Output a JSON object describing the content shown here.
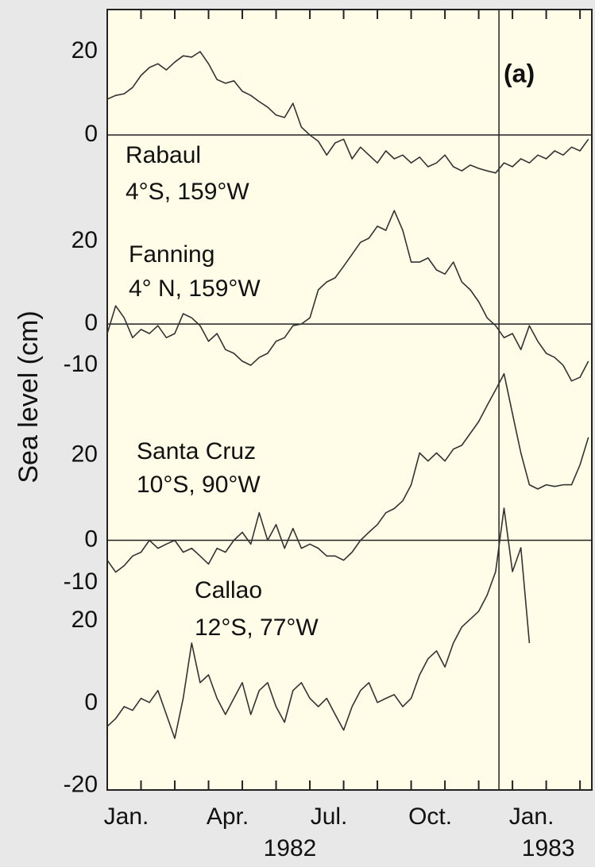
{
  "axes": {
    "ylabel": "Sea level (cm)",
    "annotation": "(a)",
    "xlim": [
      0,
      14.35
    ],
    "xticks": [
      {
        "value": 0,
        "label": "Jan."
      },
      1,
      2,
      {
        "value": 3,
        "label": "Apr."
      },
      4,
      5,
      {
        "value": 6,
        "label": "Jul."
      },
      7,
      8,
      {
        "value": 9,
        "label": "Oct."
      },
      10,
      11,
      {
        "value": 12,
        "label": "Jan."
      },
      13,
      14
    ],
    "year_labels": [
      {
        "value": 5.41,
        "label": "1982"
      },
      {
        "value": 13.06,
        "label": "1983"
      }
    ],
    "vline": 11.6
  },
  "chart_data": [
    {
      "type": "line",
      "title": "Rabaul",
      "subtitle": "4°S, 159°W",
      "color": "#333333",
      "zero_line": true,
      "ylim": [
        -157.1,
        30.1
      ],
      "yticks": [
        0,
        20
      ],
      "x": [
        0,
        0.25,
        0.5,
        0.75,
        1,
        1.25,
        1.5,
        1.75,
        2,
        2.25,
        2.5,
        2.75,
        3,
        3.25,
        3.5,
        3.75,
        4,
        4.25,
        4.5,
        4.75,
        5,
        5.25,
        5.5,
        5.75,
        6,
        6.25,
        6.5,
        6.75,
        7,
        7.25,
        7.5,
        7.75,
        8,
        8.25,
        8.5,
        8.75,
        9,
        9.25,
        9.5,
        9.75,
        10,
        10.25,
        10.5,
        10.75,
        11,
        11.25,
        11.5,
        11.75,
        12,
        12.25,
        12.5,
        12.75,
        13,
        13.25,
        13.5,
        13.75,
        14,
        14.25
      ],
      "values": [
        8.6,
        9.5,
        9.9,
        11.4,
        14.3,
        16.2,
        17.1,
        15.6,
        17.5,
        19,
        18.7,
        20,
        17.1,
        13.3,
        12.4,
        13,
        10.5,
        9.5,
        8,
        6.7,
        4.8,
        4.2,
        7.6,
        1.9,
        0,
        -1.5,
        -4.8,
        -1.9,
        -1,
        -5.7,
        -2.9,
        -4.8,
        -6.7,
        -3.8,
        -5.7,
        -4.8,
        -6.7,
        -5.3,
        -7.6,
        -6.7,
        -4.8,
        -7.6,
        -8.6,
        -7.2,
        -8,
        -8.6,
        -9.1,
        -6.7,
        -7.6,
        -5.7,
        -6.7,
        -4.8,
        -5.7,
        -3.8,
        -4.8,
        -2.9,
        -3.8,
        -1
      ]
    },
    {
      "type": "line",
      "title": "Fanning",
      "subtitle": "4° N, 159°W",
      "color": "#333333",
      "zero_line": true,
      "ylim": [
        -112.9,
        76.2
      ],
      "yticks": [
        -10,
        0,
        20
      ],
      "x": [
        0,
        0.25,
        0.5,
        0.75,
        1,
        1.25,
        1.5,
        1.75,
        2,
        2.25,
        2.5,
        2.75,
        3,
        3.25,
        3.5,
        3.75,
        4,
        4.25,
        4.5,
        4.75,
        5,
        5.25,
        5.5,
        5.75,
        6,
        6.25,
        6.5,
        6.75,
        7,
        7.25,
        7.5,
        7.75,
        8,
        8.25,
        8.5,
        8.75,
        9,
        9.25,
        9.5,
        9.75,
        10,
        10.25,
        10.5,
        10.75,
        11,
        11.25,
        11.5,
        11.75,
        12,
        12.25,
        12.5,
        12.75,
        13,
        13.25,
        13.5,
        13.75,
        14,
        14.25
      ],
      "values": [
        -2.3,
        4.4,
        1.5,
        -3.3,
        -1.3,
        -2.3,
        -0.4,
        -3.3,
        -2.3,
        2.5,
        1.5,
        -0.4,
        -4.2,
        -2.3,
        -6.2,
        -7.1,
        -9,
        -10,
        -8.1,
        -7.1,
        -4.2,
        -3.3,
        -0.4,
        0,
        1.5,
        8.3,
        10.2,
        11.2,
        14,
        16.9,
        19.8,
        20.8,
        23.7,
        22.7,
        27.5,
        22.7,
        15,
        15,
        16,
        13.1,
        12.1,
        15,
        10.2,
        8.3,
        5.4,
        1.5,
        -0.4,
        -3.3,
        -2.3,
        -6.2,
        -0.4,
        -4.2,
        -7.1,
        -8.1,
        -10,
        -13.8,
        -12.9,
        -9
      ]
    },
    {
      "type": "line",
      "title": "Santa Cruz",
      "subtitle": "10°S, 90°W",
      "color": "#333333",
      "zero_line": true,
      "ylim": [
        -58.9,
        125.2
      ],
      "yticks": [
        -10,
        0,
        20
      ],
      "x": [
        0,
        0.25,
        0.5,
        0.75,
        1,
        1.25,
        1.5,
        1.75,
        2,
        2.25,
        2.5,
        2.75,
        3,
        3.25,
        3.5,
        3.75,
        4,
        4.25,
        4.5,
        4.75,
        5,
        5.25,
        5.5,
        5.75,
        6,
        6.25,
        6.5,
        6.75,
        7,
        7.25,
        7.5,
        7.75,
        8,
        8.25,
        8.5,
        8.75,
        9,
        9.25,
        9.5,
        9.75,
        10,
        10.25,
        10.5,
        10.75,
        11,
        11.25,
        11.5,
        11.75,
        12,
        12.25,
        12.5,
        12.75,
        13,
        13.25,
        13.5,
        13.75,
        14,
        14.25
      ],
      "values": [
        -4.7,
        -7.5,
        -6,
        -3.7,
        -2.8,
        0,
        -1.9,
        -0.9,
        0,
        -2.8,
        -1.9,
        -3.7,
        -5.6,
        -1.9,
        -2.8,
        0,
        1.9,
        -0.9,
        6.5,
        0,
        3.7,
        -1.9,
        2.8,
        -1.9,
        -0.9,
        -1.9,
        -3.7,
        -3.7,
        -4.7,
        -2.8,
        0,
        1.9,
        3.7,
        6.5,
        7.5,
        9.3,
        13.1,
        20.6,
        18.7,
        20.6,
        18.7,
        21.5,
        22.4,
        25.2,
        28,
        31.8,
        35.5,
        39.3,
        29.9,
        20.6,
        13.1,
        12.1,
        13.1,
        12.7,
        13.1,
        13.1,
        17.8,
        24.3
      ]
    },
    {
      "type": "line",
      "title": "Callao",
      "subtitle": "12°S, 77°W",
      "color": "#333333",
      "zero_line": false,
      "ylim": [
        -21.0,
        168.1
      ],
      "yticks": [
        -20,
        0,
        20
      ],
      "x": [
        0,
        0.25,
        0.5,
        0.75,
        1,
        1.25,
        1.5,
        1.75,
        2,
        2.25,
        2.5,
        2.75,
        3,
        3.25,
        3.5,
        3.75,
        4,
        4.25,
        4.5,
        4.75,
        5,
        5.25,
        5.5,
        5.75,
        6,
        6.25,
        6.5,
        6.75,
        7,
        7.25,
        7.5,
        7.75,
        8,
        8.25,
        8.5,
        8.75,
        9,
        9.25,
        9.5,
        9.75,
        10,
        10.25,
        10.5,
        10.75,
        11,
        11.25,
        11.5,
        11.75,
        12,
        12.25,
        12.5
      ],
      "values": [
        -5.6,
        -3.7,
        -0.8,
        -1.7,
        1.2,
        0.2,
        3.1,
        -2.7,
        -8.5,
        1.2,
        14.6,
        5,
        6.9,
        1.2,
        -2.7,
        1.2,
        5,
        -2.7,
        3.1,
        5,
        -0.8,
        -4.6,
        3.1,
        5,
        1.2,
        -0.8,
        1.2,
        -2.7,
        -6.5,
        -0.8,
        3.1,
        5,
        0.2,
        1.2,
        2.1,
        -0.8,
        1.2,
        6.9,
        10.8,
        12.7,
        8.8,
        14.6,
        18.5,
        20.4,
        22.3,
        26.2,
        31.9,
        47.3,
        31.9,
        37.7,
        14.6
      ]
    }
  ]
}
